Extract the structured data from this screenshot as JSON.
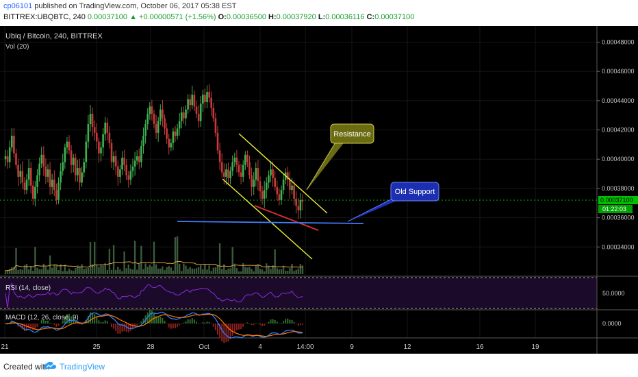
{
  "header": {
    "user": "cp06101",
    "published": "published on TradingView.com, October 06, 2017 05:38 EST",
    "symbol": "BITTREX:UBQBTC, 240",
    "price": "0.00037100",
    "change_arrow": "▲",
    "change": "+0.00000571 (+1.56%)",
    "o_label": "O:",
    "o": "0.00036500",
    "h_label": "H:",
    "h": "0.00037920",
    "l_label": "L:",
    "l": "0.00036116",
    "c_label": "C:",
    "c": "0.00037100"
  },
  "panes": {
    "main_title": "Ubiq / Bitcoin, 240, BITTREX",
    "vol_label": "Vol (20)",
    "rsi_label": "RSI (14, close)",
    "macd_label": "MACD (12, 26, close, 9)",
    "rsi_axis": "50.0000",
    "macd_axis": "0.0000"
  },
  "price_tag": {
    "value": "0.00037100",
    "countdown": "01:22:03",
    "color": "#00c000"
  },
  "annotations": {
    "resistance": "Resistance",
    "old_support": "Old Support"
  },
  "footer": {
    "created": "Created with",
    "brand": "TradingView"
  },
  "chart_data": {
    "type": "candlestick",
    "title": "Ubiq / Bitcoin, 240, BITTREX",
    "x_ticks": [
      "21",
      "25",
      "28",
      "Oct",
      "4",
      "14:00",
      "9",
      "12",
      "16",
      "19"
    ],
    "y_ticks": [
      0.00034,
      0.00036,
      0.00038,
      0.0004,
      0.00042,
      0.00044,
      0.00046,
      0.00048
    ],
    "y_tick_labels": [
      "0.00034000",
      "0.00036000",
      "0.00038000",
      "0.00040000",
      "0.00042000",
      "0.00044000",
      "0.00046000",
      "0.00048000"
    ],
    "ylim": [
      0.00032,
      0.000491
    ],
    "last_close": 0.000371,
    "colors": {
      "up": "#3fb24f",
      "down": "#c83a3a",
      "volume": "#3c5a3c",
      "volume_ma": "#e0a040",
      "rsi": "#8a2be2",
      "macd": "#3080ff",
      "signal": "#ff7a00"
    },
    "closes": [
      0.000402,
      0.000398,
      0.000408,
      0.000416,
      0.000404,
      0.000396,
      0.000388,
      0.000392,
      0.000384,
      0.000379,
      0.000386,
      0.000394,
      0.000382,
      0.000373,
      0.000381,
      0.000389,
      0.000397,
      0.000403,
      0.000395,
      0.000388,
      0.000393,
      0.000381,
      0.000386,
      0.000379,
      0.000372,
      0.000384,
      0.000392,
      0.000398,
      0.000408,
      0.000412,
      0.000406,
      0.000396,
      0.000401,
      0.000389,
      0.000394,
      0.000384,
      0.000391,
      0.000398,
      0.000412,
      0.000424,
      0.000431,
      0.000422,
      0.000418,
      0.000412,
      0.000404,
      0.000408,
      0.000417,
      0.000425,
      0.000418,
      0.000411,
      0.000398,
      0.000402,
      0.000395,
      0.000388,
      0.000393,
      0.000401,
      0.000396,
      0.000389,
      0.000386,
      0.000392,
      0.000395,
      0.000399,
      0.000402,
      0.000398,
      0.000409,
      0.000416,
      0.000424,
      0.000431,
      0.000436,
      0.000431,
      0.000424,
      0.000418,
      0.000426,
      0.000434,
      0.000428,
      0.000421,
      0.000414,
      0.000408,
      0.000411,
      0.000419,
      0.000416,
      0.000421,
      0.000426,
      0.000432,
      0.000428,
      0.000434,
      0.000441,
      0.000437,
      0.000444,
      0.000436,
      0.000431,
      0.000426,
      0.000438,
      0.000444,
      0.000439,
      0.000446,
      0.000442,
      0.000435,
      0.000428,
      0.000418,
      0.000406,
      0.000398,
      0.000391,
      0.000388,
      0.000393,
      0.000387,
      0.000392,
      0.000398,
      0.000401,
      0.000396,
      0.000391,
      0.000388,
      0.000396,
      0.000403,
      0.000398,
      0.000389,
      0.000381,
      0.000386,
      0.000394,
      0.000385,
      0.000378,
      0.000373,
      0.000379,
      0.000384,
      0.000389,
      0.000393,
      0.000387,
      0.000381,
      0.000376,
      0.000372,
      0.000379,
      0.000386,
      0.000391,
      0.000386,
      0.000379,
      0.000382,
      0.000373,
      0.000368,
      0.000365,
      0.000372,
      0.000371
    ]
  }
}
